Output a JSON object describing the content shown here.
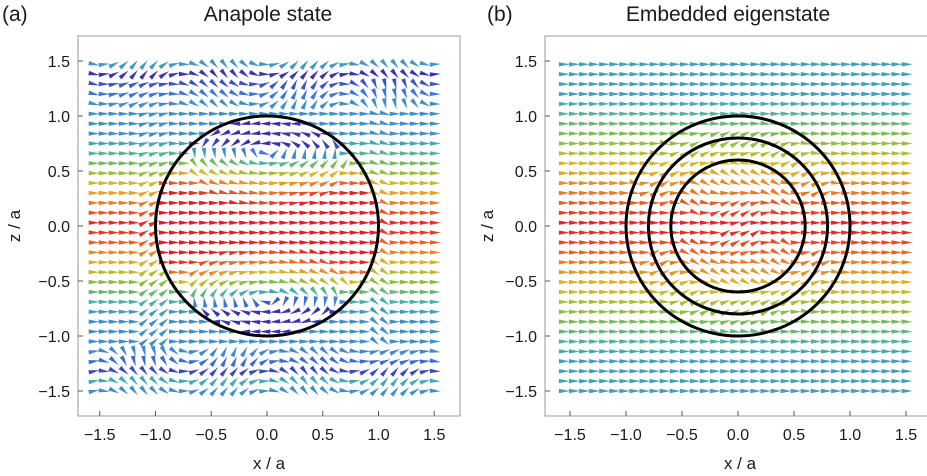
{
  "chart_data": [
    {
      "type": "vector-field",
      "panel_label": "(a)",
      "title": "Anapole state",
      "xlabel": "x / a",
      "ylabel": "z / a",
      "xlim": [
        -1.75,
        1.75
      ],
      "ylim": [
        -1.75,
        1.75
      ],
      "x_ticks": [
        "−1.5",
        "−1.0",
        "−0.5",
        "0.0",
        "0.5",
        "1.0",
        "1.5"
      ],
      "y_ticks": [
        "−1.5",
        "−1.0",
        "−0.5",
        "0.0",
        "0.5",
        "1.0",
        "1.5"
      ],
      "tick_values": [
        -1.5,
        -1.0,
        -0.5,
        0.0,
        0.5,
        1.0,
        1.5
      ],
      "circles": [
        {
          "cx": 0,
          "cz": 0,
          "r": 1.0
        }
      ],
      "field": "anapole",
      "colormap": "rainbow (blue = low magnitude, red = high magnitude)"
    },
    {
      "type": "vector-field",
      "panel_label": "(b)",
      "title": "Embedded eigenstate",
      "xlabel": "x / a",
      "ylabel": "z / a",
      "xlim": [
        -1.75,
        1.75
      ],
      "ylim": [
        -1.75,
        1.75
      ],
      "x_ticks": [
        "−1.5",
        "−1.0",
        "−0.5",
        "0.0",
        "0.5",
        "1.0",
        "1.5"
      ],
      "y_ticks": [
        "−1.5",
        "−1.0",
        "−0.5",
        "0.0",
        "0.5",
        "1.0",
        "1.5"
      ],
      "tick_values": [
        -1.5,
        -1.0,
        -0.5,
        0.0,
        0.5,
        1.0,
        1.5
      ],
      "circles": [
        {
          "cx": 0,
          "cz": 0,
          "r": 0.6
        },
        {
          "cx": 0,
          "cz": 0,
          "r": 0.8
        },
        {
          "cx": 0,
          "cz": 0,
          "r": 1.0
        }
      ],
      "field": "uniform",
      "colormap": "rainbow (blue = low magnitude, red = high magnitude)"
    }
  ]
}
